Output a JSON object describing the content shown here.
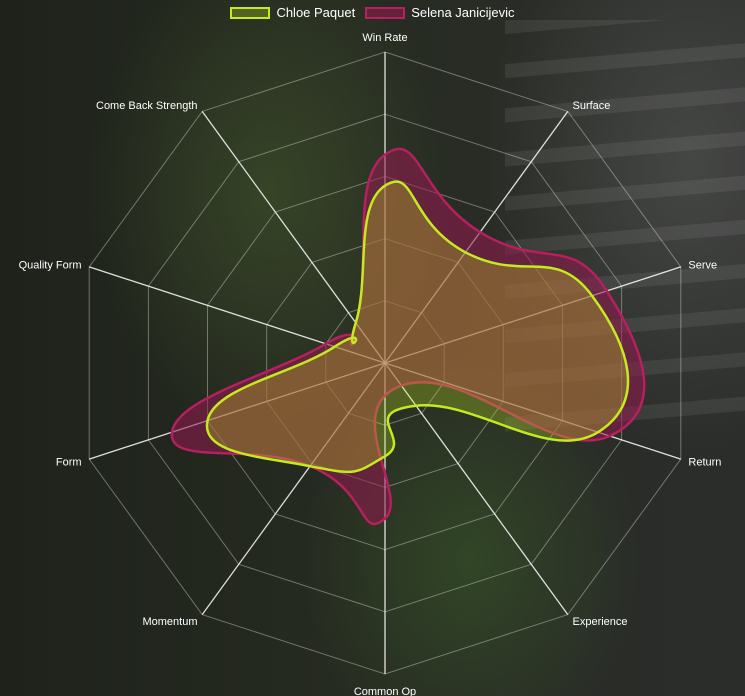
{
  "chart_data": {
    "type": "radar",
    "axes": [
      "Win Rate",
      "Surface",
      "Serve",
      "Return",
      "Experience",
      "Common Op",
      "Momentum",
      "Form",
      "Quality Form",
      "Come Back Strength"
    ],
    "rmax": 100,
    "grid_levels": 5,
    "series": [
      {
        "name": "Chloe Paquet",
        "values": [
          57,
          44,
          70,
          72,
          17,
          30,
          41,
          60,
          17,
          16
        ],
        "stroke": "#c5ea1f",
        "fill": "rgba(197,234,31,0.28)"
      },
      {
        "name": "Selena Janicijevic",
        "values": [
          67,
          52,
          75,
          76,
          9,
          50,
          41,
          72,
          20,
          16
        ],
        "stroke": "#b5205e",
        "fill": "rgba(150,25,80,0.55)"
      }
    ],
    "grid": true,
    "legend": "top"
  }
}
